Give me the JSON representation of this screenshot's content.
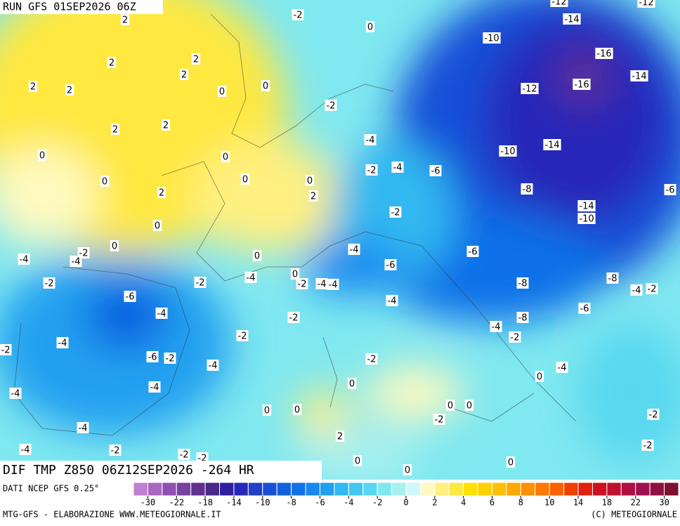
{
  "header": {
    "run": "RUN GFS 01SEP2026 06Z"
  },
  "map": {
    "title": "DIF TMP Z850 06Z12SEP2026 -264 HR",
    "labels": [
      -12,
      -12,
      2,
      -2,
      0,
      -10,
      -14,
      -16,
      -14,
      -12,
      -16,
      2,
      2,
      2,
      2,
      2,
      0,
      0,
      -2,
      2,
      2,
      -4,
      -14,
      -10,
      0,
      0,
      -2,
      -4,
      -6,
      0,
      0,
      0,
      -8,
      -6,
      2,
      2,
      -14,
      -10,
      -2,
      0,
      -4,
      -6,
      0,
      -2,
      -4,
      -4,
      0,
      -6,
      -4,
      0,
      -2,
      -2,
      -2,
      -4,
      -4,
      -8,
      -8,
      -4,
      -2,
      -6,
      -4,
      -4,
      -6,
      -2,
      -8,
      -4,
      -2,
      -2,
      -4,
      -2,
      -6,
      -2,
      -2,
      -4,
      -4,
      0,
      0,
      -4,
      -4,
      0,
      0,
      0,
      0,
      -2,
      -2,
      -4,
      2,
      -4,
      -2,
      -2,
      -2,
      -2,
      0,
      0,
      0
    ]
  },
  "colorbar": {
    "source": "DATI NCEP GFS 0.25°",
    "colors": [
      "#c080d0",
      "#a868c0",
      "#9050b0",
      "#7840a0",
      "#603090",
      "#482888",
      "#3020a0",
      "#2828b8",
      "#2040c8",
      "#1850d8",
      "#1060e0",
      "#1070e8",
      "#1888f0",
      "#20a0f0",
      "#30b8f0",
      "#40c8f0",
      "#58d8f0",
      "#80e8f0",
      "#a8f0f0",
      "#d0f8f8",
      "#fffac0",
      "#fff080",
      "#ffe840",
      "#ffe000",
      "#ffd000",
      "#ffc000",
      "#ffa800",
      "#ff9000",
      "#ff7800",
      "#ff6000",
      "#f04000",
      "#e02010",
      "#d01020",
      "#c01030",
      "#b01040",
      "#a01050",
      "#901040",
      "#801030"
    ],
    "ticks": [
      -30,
      -22,
      -18,
      -14,
      -10,
      -8,
      -6,
      -4,
      -2,
      0,
      2,
      4,
      6,
      8,
      10,
      14,
      18,
      22,
      30
    ]
  },
  "footer": {
    "credit": "MTG-GFS - ELABORAZIONE WWW.METEOGIORNALE.IT",
    "copyright": "(C) METEOGIORNALE"
  }
}
